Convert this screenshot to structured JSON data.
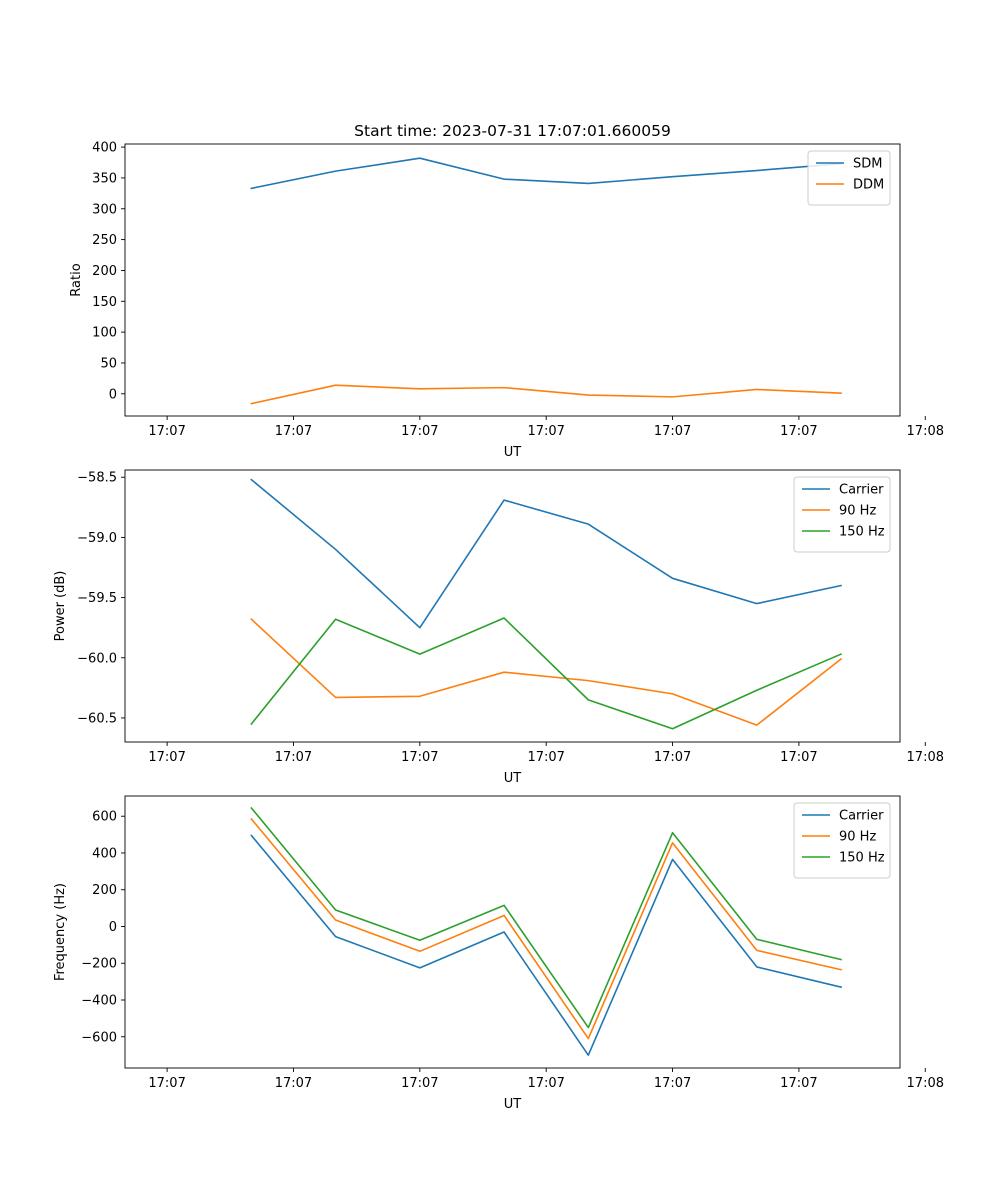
{
  "figure_title": "Start time: 2023-07-31 17:07:01.660059",
  "colors": {
    "c0": "#1f77b4",
    "c1": "#ff7f0e",
    "c2": "#2ca02c"
  },
  "chart_data": [
    {
      "type": "line",
      "title": "Start time: 2023-07-31 17:07:01.660059",
      "xlabel": "UT",
      "ylabel": "Ratio",
      "xlim": [
        -0.5,
        8.7
      ],
      "x": [
        1,
        2,
        3,
        4,
        5,
        6,
        7,
        8
      ],
      "x_ticks": [
        0,
        1.5,
        3,
        4.5,
        6,
        7.5,
        9
      ],
      "x_tick_labels": [
        "17:07",
        "17:07",
        "17:07",
        "17:07",
        "17:07",
        "17:07",
        "17:08"
      ],
      "ylim": [
        -36,
        405
      ],
      "y_ticks": [
        0,
        50,
        100,
        150,
        200,
        250,
        300,
        350,
        400
      ],
      "y_tick_labels": [
        "0",
        "50",
        "100",
        "150",
        "200",
        "250",
        "300",
        "350",
        "400"
      ],
      "legend_position": "top-right",
      "series": [
        {
          "name": "SDM",
          "color": "#1f77b4",
          "values": [
            333,
            361,
            382,
            348,
            341,
            352,
            362,
            373
          ]
        },
        {
          "name": "DDM",
          "color": "#ff7f0e",
          "values": [
            -16,
            14,
            8,
            10,
            -2,
            -5,
            7,
            1
          ]
        }
      ]
    },
    {
      "type": "line",
      "xlabel": "UT",
      "ylabel": "Power (dB)",
      "xlim": [
        -0.5,
        8.7
      ],
      "x": [
        1,
        2,
        3,
        4,
        5,
        6,
        7,
        8
      ],
      "x_ticks": [
        0,
        1.5,
        3,
        4.5,
        6,
        7.5,
        9
      ],
      "x_tick_labels": [
        "17:07",
        "17:07",
        "17:07",
        "17:07",
        "17:07",
        "17:07",
        "17:08"
      ],
      "ylim": [
        -60.7,
        -58.44
      ],
      "y_ticks": [
        -60.5,
        -60.0,
        -59.5,
        -59.0,
        -58.5
      ],
      "y_tick_labels": [
        "−60.5",
        "−60.0",
        "−59.5",
        "−59.0",
        "−58.5"
      ],
      "legend_position": "top-right",
      "series": [
        {
          "name": "Carrier",
          "color": "#1f77b4",
          "values": [
            -58.52,
            -59.1,
            -59.75,
            -58.69,
            -58.89,
            -59.34,
            -59.55,
            -59.4
          ]
        },
        {
          "name": "90 Hz",
          "color": "#ff7f0e",
          "values": [
            -59.68,
            -60.33,
            -60.32,
            -60.12,
            -60.19,
            -60.3,
            -60.56,
            -60.01
          ]
        },
        {
          "name": "150 Hz",
          "color": "#2ca02c",
          "values": [
            -60.55,
            -59.68,
            -59.97,
            -59.67,
            -60.35,
            -60.59,
            -60.27,
            -59.97
          ]
        }
      ]
    },
    {
      "type": "line",
      "xlabel": "UT",
      "ylabel": "Frequency (Hz)",
      "xlim": [
        -0.5,
        8.7
      ],
      "x": [
        1,
        2,
        3,
        4,
        5,
        6,
        7,
        8
      ],
      "x_ticks": [
        0,
        1.5,
        3,
        4.5,
        6,
        7.5,
        9
      ],
      "x_tick_labels": [
        "17:07",
        "17:07",
        "17:07",
        "17:07",
        "17:07",
        "17:07",
        "17:08"
      ],
      "ylim": [
        -770,
        710
      ],
      "y_ticks": [
        -600,
        -400,
        -200,
        0,
        200,
        400,
        600
      ],
      "y_tick_labels": [
        "−600",
        "−400",
        "−200",
        "0",
        "200",
        "400",
        "600"
      ],
      "legend_position": "top-right",
      "series": [
        {
          "name": "Carrier",
          "color": "#1f77b4",
          "values": [
            495,
            -55,
            -225,
            -30,
            -700,
            365,
            -220,
            -330
          ]
        },
        {
          "name": "90 Hz",
          "color": "#ff7f0e",
          "values": [
            585,
            35,
            -135,
            60,
            -610,
            455,
            -130,
            -235
          ]
        },
        {
          "name": "150 Hz",
          "color": "#2ca02c",
          "values": [
            645,
            90,
            -75,
            115,
            -550,
            510,
            -70,
            -180
          ]
        }
      ]
    }
  ]
}
